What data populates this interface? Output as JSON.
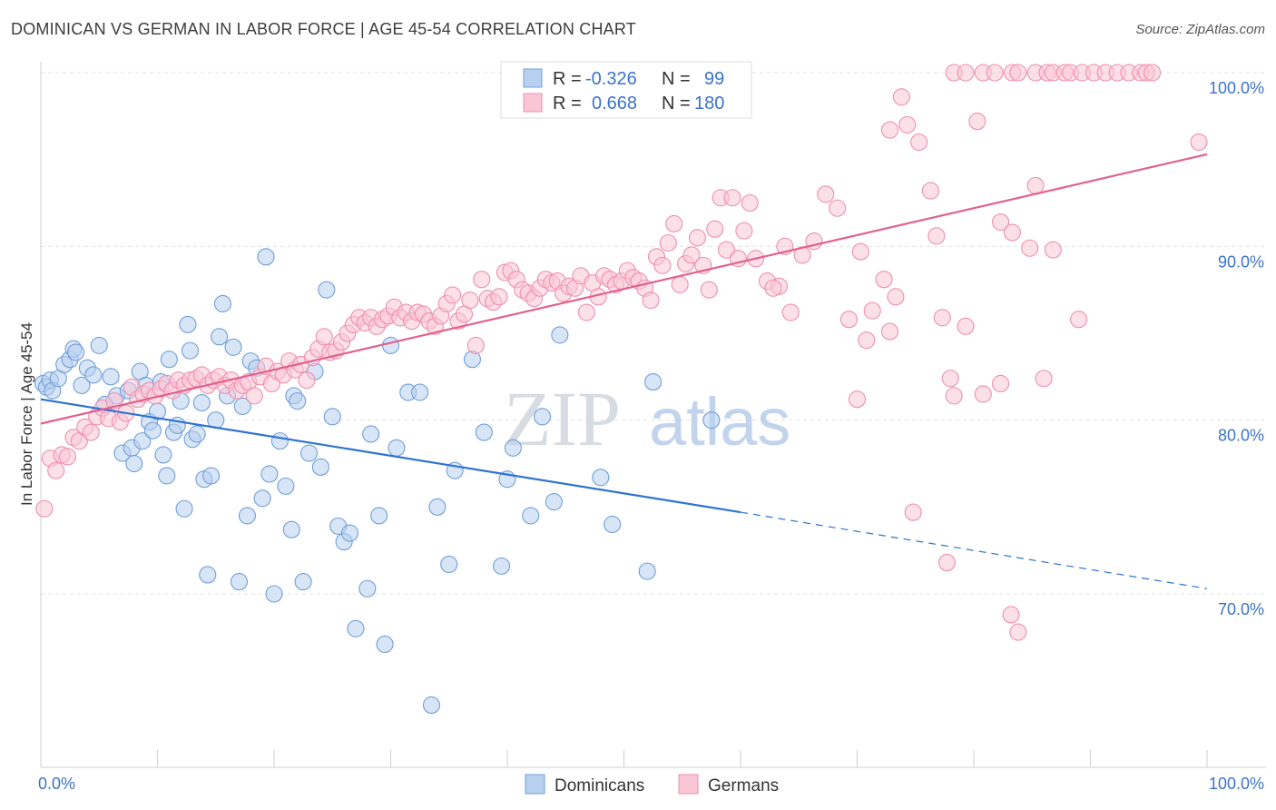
{
  "title": "DOMINICAN VS GERMAN IN LABOR FORCE | AGE 45-54 CORRELATION CHART",
  "source": "Source: ZipAtlas.com",
  "watermark": {
    "zip": "ZIP",
    "atlas": "atlas"
  },
  "legend": {
    "rows": [
      {
        "r_label": "R =",
        "r_value": "-0.326",
        "n_label": "N =",
        "n_value": "99",
        "swatch": "#b8d0f0",
        "stroke": "#6f9fd8"
      },
      {
        "r_label": "R =",
        "r_value": "0.668",
        "n_label": "N =",
        "n_value": "180",
        "swatch": "#f9c6d6",
        "stroke": "#ee8fae"
      }
    ]
  },
  "bottom_legend": {
    "items": [
      {
        "label": "Dominicans",
        "swatch": "#b8d0f0",
        "stroke": "#6f9fd8"
      },
      {
        "label": "Germans",
        "swatch": "#f9c6d6",
        "stroke": "#ee8fae"
      }
    ]
  },
  "chart_data": {
    "type": "scatter",
    "xlabel": "",
    "ylabel": "In Labor Force | Age 45-54",
    "xlim": [
      0,
      100
    ],
    "ylim": [
      62.0,
      100.5
    ],
    "x_tick_labels": [
      {
        "value": 0,
        "label": "0.0%"
      },
      {
        "value": 100,
        "label": "100.0%"
      }
    ],
    "y_ticks": [
      {
        "value": 100,
        "label": "100.0%"
      },
      {
        "value": 90,
        "label": "90.0%"
      },
      {
        "value": 80,
        "label": "80.0%"
      },
      {
        "value": 70,
        "label": "70.0%"
      }
    ],
    "grid": true,
    "series": [
      {
        "name": "Dominicans",
        "color": "#6f9fd8",
        "fill": "#b8d0f0",
        "line_color": "#2f73d0",
        "trend": {
          "x0": 0,
          "y0": 81.2,
          "x1": 60,
          "y1": 74.7,
          "dash_x1": 100,
          "dash_y1": 70.3
        },
        "points": [
          [
            0.2,
            82.1
          ],
          [
            0.5,
            81.9
          ],
          [
            0.8,
            82.3
          ],
          [
            1.0,
            81.7
          ],
          [
            1.5,
            82.4
          ],
          [
            2.0,
            83.2
          ],
          [
            2.5,
            83.5
          ],
          [
            2.8,
            84.1
          ],
          [
            3.0,
            83.9
          ],
          [
            3.5,
            82.0
          ],
          [
            4.0,
            83.0
          ],
          [
            4.5,
            82.6
          ],
          [
            5.0,
            84.3
          ],
          [
            5.5,
            80.9
          ],
          [
            6.0,
            82.5
          ],
          [
            6.5,
            81.4
          ],
          [
            7.0,
            78.1
          ],
          [
            7.5,
            81.7
          ],
          [
            7.8,
            78.4
          ],
          [
            8.0,
            77.5
          ],
          [
            8.5,
            82.8
          ],
          [
            8.7,
            78.8
          ],
          [
            9.0,
            82.0
          ],
          [
            9.3,
            79.9
          ],
          [
            9.6,
            79.4
          ],
          [
            10.0,
            80.5
          ],
          [
            10.3,
            82.2
          ],
          [
            10.5,
            78.0
          ],
          [
            10.8,
            76.8
          ],
          [
            11.0,
            83.5
          ],
          [
            11.4,
            79.3
          ],
          [
            11.7,
            79.7
          ],
          [
            12.0,
            81.1
          ],
          [
            12.3,
            74.9
          ],
          [
            12.6,
            85.5
          ],
          [
            12.8,
            84.0
          ],
          [
            13.0,
            78.9
          ],
          [
            13.4,
            79.2
          ],
          [
            13.8,
            81.0
          ],
          [
            14.0,
            76.6
          ],
          [
            14.3,
            71.1
          ],
          [
            14.6,
            76.8
          ],
          [
            15.0,
            80.0
          ],
          [
            15.3,
            84.8
          ],
          [
            15.6,
            86.7
          ],
          [
            16.0,
            81.4
          ],
          [
            16.5,
            84.2
          ],
          [
            17.0,
            70.7
          ],
          [
            17.3,
            80.8
          ],
          [
            17.7,
            74.5
          ],
          [
            18.0,
            83.4
          ],
          [
            18.5,
            83.0
          ],
          [
            19.0,
            75.5
          ],
          [
            19.3,
            89.4
          ],
          [
            19.6,
            76.9
          ],
          [
            20.0,
            70.0
          ],
          [
            20.5,
            78.8
          ],
          [
            21.0,
            76.2
          ],
          [
            21.5,
            73.7
          ],
          [
            21.7,
            81.4
          ],
          [
            22.0,
            81.1
          ],
          [
            22.5,
            70.7
          ],
          [
            23.0,
            78.1
          ],
          [
            23.5,
            82.8
          ],
          [
            24.0,
            77.3
          ],
          [
            24.5,
            87.5
          ],
          [
            25.0,
            80.2
          ],
          [
            25.5,
            73.9
          ],
          [
            26.0,
            73.0
          ],
          [
            26.5,
            73.5
          ],
          [
            27.0,
            68.0
          ],
          [
            28.0,
            70.3
          ],
          [
            28.3,
            79.2
          ],
          [
            29.0,
            74.5
          ],
          [
            29.5,
            67.1
          ],
          [
            30.0,
            84.3
          ],
          [
            30.5,
            78.4
          ],
          [
            31.5,
            81.6
          ],
          [
            32.5,
            81.6
          ],
          [
            33.5,
            63.6
          ],
          [
            34.0,
            75.0
          ],
          [
            35.0,
            71.7
          ],
          [
            35.5,
            77.1
          ],
          [
            37.0,
            83.5
          ],
          [
            38.0,
            79.3
          ],
          [
            39.5,
            71.6
          ],
          [
            40.0,
            76.6
          ],
          [
            40.5,
            78.4
          ],
          [
            42.0,
            74.5
          ],
          [
            43.0,
            80.2
          ],
          [
            44.0,
            75.3
          ],
          [
            44.5,
            84.9
          ],
          [
            48.0,
            76.7
          ],
          [
            49.0,
            74.0
          ],
          [
            52.0,
            71.3
          ],
          [
            52.5,
            82.2
          ],
          [
            57.5,
            80.0
          ]
        ]
      },
      {
        "name": "Germans",
        "color": "#ee8fae",
        "fill": "#f9c6d6",
        "line_color": "#e0628d",
        "trend": {
          "x0": 0,
          "y0": 79.8,
          "x1": 100,
          "y1": 95.3
        },
        "points": [
          [
            0.3,
            74.9
          ],
          [
            0.8,
            77.8
          ],
          [
            1.3,
            77.1
          ],
          [
            1.8,
            78.0
          ],
          [
            2.3,
            77.9
          ],
          [
            2.8,
            79.0
          ],
          [
            3.3,
            78.8
          ],
          [
            3.8,
            79.6
          ],
          [
            4.3,
            79.3
          ],
          [
            4.8,
            80.2
          ],
          [
            5.3,
            80.7
          ],
          [
            5.8,
            80.1
          ],
          [
            6.3,
            81.1
          ],
          [
            6.8,
            79.9
          ],
          [
            7.3,
            80.4
          ],
          [
            7.8,
            81.9
          ],
          [
            8.3,
            81.2
          ],
          [
            8.8,
            81.5
          ],
          [
            9.3,
            81.7
          ],
          [
            9.8,
            81.4
          ],
          [
            10.3,
            81.8
          ],
          [
            10.8,
            82.1
          ],
          [
            11.3,
            81.7
          ],
          [
            11.8,
            82.3
          ],
          [
            12.3,
            82.0
          ],
          [
            12.8,
            82.3
          ],
          [
            13.3,
            82.4
          ],
          [
            13.8,
            82.6
          ],
          [
            14.3,
            82.0
          ],
          [
            14.8,
            82.3
          ],
          [
            15.3,
            82.5
          ],
          [
            15.8,
            82.0
          ],
          [
            16.3,
            82.3
          ],
          [
            16.8,
            81.7
          ],
          [
            17.3,
            82.0
          ],
          [
            17.8,
            82.2
          ],
          [
            18.3,
            81.4
          ],
          [
            18.8,
            82.5
          ],
          [
            19.3,
            83.1
          ],
          [
            19.8,
            82.1
          ],
          [
            20.3,
            82.8
          ],
          [
            20.8,
            82.6
          ],
          [
            21.3,
            83.4
          ],
          [
            21.8,
            82.9
          ],
          [
            22.3,
            83.2
          ],
          [
            22.8,
            82.3
          ],
          [
            23.3,
            83.6
          ],
          [
            23.8,
            84.1
          ],
          [
            24.3,
            84.8
          ],
          [
            24.8,
            83.9
          ],
          [
            25.3,
            84.0
          ],
          [
            25.8,
            84.5
          ],
          [
            26.3,
            85.0
          ],
          [
            26.8,
            85.5
          ],
          [
            27.3,
            85.9
          ],
          [
            27.8,
            85.6
          ],
          [
            28.3,
            85.9
          ],
          [
            28.8,
            85.4
          ],
          [
            29.3,
            85.8
          ],
          [
            29.8,
            86.0
          ],
          [
            30.3,
            86.5
          ],
          [
            30.8,
            85.9
          ],
          [
            31.3,
            86.2
          ],
          [
            31.8,
            85.7
          ],
          [
            32.3,
            86.2
          ],
          [
            32.8,
            86.1
          ],
          [
            33.3,
            85.7
          ],
          [
            33.8,
            85.4
          ],
          [
            34.3,
            86.0
          ],
          [
            34.8,
            86.7
          ],
          [
            35.3,
            87.2
          ],
          [
            35.8,
            85.7
          ],
          [
            36.3,
            86.1
          ],
          [
            36.8,
            86.9
          ],
          [
            37.3,
            84.3
          ],
          [
            37.8,
            88.1
          ],
          [
            38.3,
            87.0
          ],
          [
            38.8,
            86.8
          ],
          [
            39.3,
            87.1
          ],
          [
            39.8,
            88.5
          ],
          [
            40.3,
            88.6
          ],
          [
            40.8,
            88.1
          ],
          [
            41.3,
            87.5
          ],
          [
            41.8,
            87.3
          ],
          [
            42.3,
            87.0
          ],
          [
            42.8,
            87.6
          ],
          [
            43.3,
            88.1
          ],
          [
            43.8,
            87.9
          ],
          [
            44.3,
            88.0
          ],
          [
            44.8,
            87.3
          ],
          [
            45.3,
            87.7
          ],
          [
            45.8,
            87.6
          ],
          [
            46.3,
            88.3
          ],
          [
            46.8,
            86.2
          ],
          [
            47.3,
            87.9
          ],
          [
            47.8,
            87.1
          ],
          [
            48.3,
            88.3
          ],
          [
            48.8,
            88.1
          ],
          [
            49.3,
            87.8
          ],
          [
            49.8,
            88.0
          ],
          [
            50.3,
            88.6
          ],
          [
            50.8,
            88.2
          ],
          [
            51.3,
            88.0
          ],
          [
            51.8,
            87.6
          ],
          [
            52.3,
            86.9
          ],
          [
            52.8,
            89.4
          ],
          [
            53.3,
            88.9
          ],
          [
            53.8,
            90.2
          ],
          [
            54.3,
            91.3
          ],
          [
            54.8,
            87.8
          ],
          [
            55.3,
            89.0
          ],
          [
            55.8,
            89.5
          ],
          [
            56.3,
            90.5
          ],
          [
            56.8,
            88.9
          ],
          [
            57.3,
            87.5
          ],
          [
            57.8,
            91.0
          ],
          [
            58.3,
            92.8
          ],
          [
            58.8,
            89.8
          ],
          [
            59.3,
            92.8
          ],
          [
            59.8,
            89.3
          ],
          [
            60.3,
            90.9
          ],
          [
            60.8,
            92.5
          ],
          [
            61.3,
            89.3
          ],
          [
            62.3,
            88.0
          ],
          [
            63.3,
            87.7
          ],
          [
            63.8,
            90.0
          ],
          [
            64.3,
            86.2
          ],
          [
            65.3,
            89.5
          ],
          [
            66.3,
            90.3
          ],
          [
            67.3,
            93.0
          ],
          [
            68.3,
            92.2
          ],
          [
            69.3,
            85.8
          ],
          [
            70.3,
            89.7
          ],
          [
            71.3,
            86.3
          ],
          [
            72.3,
            88.1
          ],
          [
            72.8,
            96.7
          ],
          [
            73.3,
            87.1
          ],
          [
            73.8,
            98.6
          ],
          [
            74.3,
            97.0
          ],
          [
            75.3,
            96.0
          ],
          [
            76.3,
            93.2
          ],
          [
            76.8,
            90.6
          ],
          [
            78.3,
            100.0
          ],
          [
            79.3,
            100.0
          ],
          [
            80.8,
            100.0
          ],
          [
            81.8,
            100.0
          ],
          [
            83.3,
            100.0
          ],
          [
            83.8,
            100.0
          ],
          [
            85.3,
            100.0
          ],
          [
            86.3,
            100.0
          ],
          [
            86.8,
            100.0
          ],
          [
            87.8,
            100.0
          ],
          [
            88.3,
            100.0
          ],
          [
            89.3,
            100.0
          ],
          [
            90.3,
            100.0
          ],
          [
            91.3,
            100.0
          ],
          [
            92.3,
            100.0
          ],
          [
            93.3,
            100.0
          ],
          [
            94.3,
            100.0
          ],
          [
            94.8,
            100.0
          ],
          [
            95.3,
            100.0
          ],
          [
            99.3,
            96.0
          ],
          [
            80.3,
            97.2
          ],
          [
            82.3,
            91.4
          ],
          [
            83.3,
            90.8
          ],
          [
            85.3,
            93.5
          ],
          [
            86.8,
            89.8
          ],
          [
            89.0,
            85.8
          ],
          [
            84.8,
            89.9
          ],
          [
            79.3,
            85.4
          ],
          [
            77.3,
            85.9
          ],
          [
            78.0,
            82.4
          ],
          [
            78.3,
            81.4
          ],
          [
            80.8,
            81.5
          ],
          [
            82.3,
            82.1
          ],
          [
            70.0,
            81.2
          ],
          [
            74.8,
            74.7
          ],
          [
            77.7,
            71.8
          ],
          [
            83.2,
            68.8
          ],
          [
            83.8,
            67.8
          ],
          [
            86.0,
            82.4
          ],
          [
            72.8,
            85.1
          ],
          [
            70.8,
            84.6
          ],
          [
            62.8,
            87.6
          ]
        ]
      }
    ]
  }
}
